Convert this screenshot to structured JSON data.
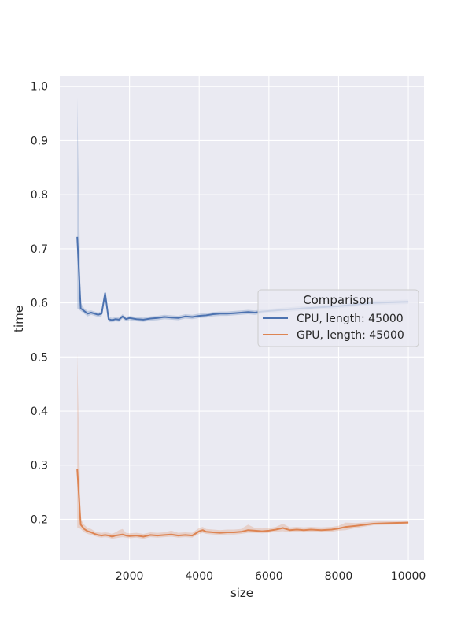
{
  "chart_data": {
    "type": "line",
    "title": "",
    "xlabel": "size",
    "ylabel": "time",
    "xlim": [
      0,
      10450
    ],
    "ylim": [
      0.125,
      1.02
    ],
    "x_ticks": [
      2000,
      4000,
      6000,
      8000,
      10000
    ],
    "y_ticks": [
      0.2,
      0.3,
      0.4,
      0.5,
      0.6,
      0.7,
      0.8,
      0.9,
      1.0
    ],
    "x_tick_labels": [
      "2000",
      "4000",
      "6000",
      "8000",
      "10000"
    ],
    "y_tick_labels": [
      "0.2",
      "0.3",
      "0.4",
      "0.5",
      "0.6",
      "0.7",
      "0.8",
      "0.9",
      "1.0"
    ],
    "grid": true,
    "legend": {
      "title": "Comparison",
      "position": "center-right"
    },
    "series": [
      {
        "name": "CPU, length: 45000",
        "color": "#4c72b0",
        "x": [
          500,
          600,
          700,
          800,
          900,
          1000,
          1100,
          1200,
          1300,
          1400,
          1500,
          1600,
          1700,
          1800,
          1900,
          2000,
          2200,
          2400,
          2600,
          2800,
          3000,
          3200,
          3400,
          3600,
          3800,
          4000,
          4200,
          4400,
          4600,
          4800,
          5000,
          5200,
          5400,
          5600,
          5800,
          6000,
          6200,
          6400,
          6600,
          6800,
          7000,
          7500,
          8000,
          8500,
          9000,
          9500,
          10000
        ],
        "values": [
          0.722,
          0.59,
          0.585,
          0.58,
          0.582,
          0.58,
          0.578,
          0.58,
          0.618,
          0.57,
          0.568,
          0.57,
          0.569,
          0.575,
          0.57,
          0.572,
          0.57,
          0.569,
          0.571,
          0.572,
          0.574,
          0.573,
          0.572,
          0.575,
          0.574,
          0.576,
          0.577,
          0.579,
          0.58,
          0.58,
          0.581,
          0.582,
          0.583,
          0.582,
          0.584,
          0.585,
          0.586,
          0.587,
          0.588,
          0.589,
          0.59,
          0.592,
          0.594,
          0.597,
          0.6,
          0.601,
          0.602
        ],
        "upper": [
          0.98,
          0.6,
          0.59,
          0.585,
          0.586,
          0.584,
          0.582,
          0.585,
          0.625,
          0.575,
          0.572,
          0.574,
          0.573,
          0.579,
          0.574,
          0.576,
          0.574,
          0.573,
          0.575,
          0.576,
          0.578,
          0.577,
          0.576,
          0.579,
          0.578,
          0.58,
          0.581,
          0.583,
          0.584,
          0.584,
          0.585,
          0.586,
          0.587,
          0.586,
          0.588,
          0.589,
          0.59,
          0.591,
          0.592,
          0.593,
          0.594,
          0.596,
          0.598,
          0.601,
          0.604,
          0.605,
          0.606
        ],
        "lower": [
          0.59,
          0.585,
          0.58,
          0.575,
          0.578,
          0.576,
          0.574,
          0.575,
          0.61,
          0.565,
          0.564,
          0.566,
          0.565,
          0.571,
          0.566,
          0.568,
          0.566,
          0.565,
          0.567,
          0.568,
          0.57,
          0.569,
          0.568,
          0.571,
          0.57,
          0.572,
          0.573,
          0.575,
          0.576,
          0.576,
          0.577,
          0.578,
          0.579,
          0.578,
          0.58,
          0.581,
          0.582,
          0.583,
          0.584,
          0.585,
          0.586,
          0.588,
          0.59,
          0.593,
          0.596,
          0.597,
          0.598
        ]
      },
      {
        "name": "GPU, length: 45000",
        "color": "#dd8452",
        "x": [
          500,
          600,
          700,
          800,
          900,
          1000,
          1100,
          1200,
          1300,
          1400,
          1500,
          1600,
          1700,
          1800,
          1900,
          2000,
          2200,
          2400,
          2600,
          2800,
          3000,
          3200,
          3400,
          3600,
          3800,
          4000,
          4100,
          4200,
          4400,
          4600,
          4800,
          5000,
          5200,
          5400,
          5600,
          5800,
          6000,
          6200,
          6400,
          6600,
          6800,
          7000,
          7200,
          7500,
          7800,
          8000,
          8200,
          8500,
          9000,
          9500,
          10000
        ],
        "values": [
          0.293,
          0.19,
          0.182,
          0.178,
          0.176,
          0.173,
          0.171,
          0.17,
          0.171,
          0.17,
          0.168,
          0.17,
          0.171,
          0.172,
          0.17,
          0.169,
          0.17,
          0.168,
          0.171,
          0.17,
          0.171,
          0.172,
          0.17,
          0.171,
          0.17,
          0.178,
          0.18,
          0.177,
          0.176,
          0.175,
          0.176,
          0.176,
          0.177,
          0.18,
          0.179,
          0.178,
          0.179,
          0.181,
          0.184,
          0.18,
          0.181,
          0.18,
          0.181,
          0.18,
          0.181,
          0.183,
          0.186,
          0.188,
          0.192,
          0.193,
          0.194
        ],
        "upper": [
          0.508,
          0.2,
          0.19,
          0.184,
          0.182,
          0.178,
          0.176,
          0.175,
          0.176,
          0.175,
          0.173,
          0.176,
          0.18,
          0.182,
          0.175,
          0.174,
          0.175,
          0.173,
          0.176,
          0.175,
          0.176,
          0.179,
          0.175,
          0.176,
          0.175,
          0.184,
          0.186,
          0.182,
          0.181,
          0.18,
          0.181,
          0.181,
          0.182,
          0.19,
          0.184,
          0.183,
          0.184,
          0.186,
          0.192,
          0.185,
          0.186,
          0.185,
          0.186,
          0.185,
          0.186,
          0.188,
          0.194,
          0.193,
          0.196,
          0.197,
          0.197
        ],
        "lower": [
          0.185,
          0.182,
          0.176,
          0.173,
          0.171,
          0.169,
          0.167,
          0.166,
          0.167,
          0.166,
          0.164,
          0.165,
          0.166,
          0.167,
          0.166,
          0.165,
          0.166,
          0.164,
          0.167,
          0.166,
          0.167,
          0.168,
          0.166,
          0.167,
          0.166,
          0.173,
          0.175,
          0.173,
          0.172,
          0.171,
          0.172,
          0.172,
          0.173,
          0.175,
          0.175,
          0.174,
          0.175,
          0.177,
          0.178,
          0.176,
          0.177,
          0.176,
          0.177,
          0.176,
          0.177,
          0.179,
          0.18,
          0.184,
          0.189,
          0.19,
          0.191
        ]
      }
    ]
  }
}
